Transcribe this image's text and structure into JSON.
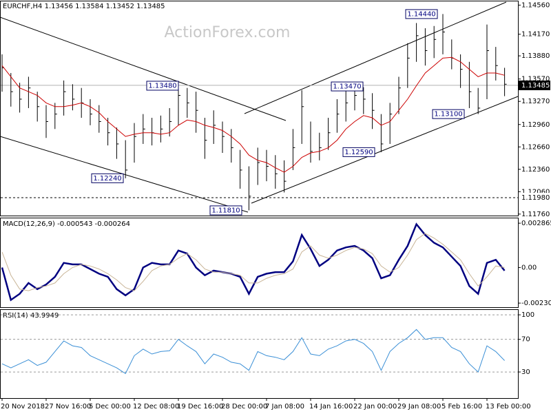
{
  "chart_data": [
    {
      "type": "hilo",
      "title": "EURCHF,H4  1.13456 1.13584 1.13452 1.13485",
      "watermark": "ActionForex.com",
      "categories": [
        "20 Nov 2018",
        null,
        null,
        null,
        null,
        "27 Nov 16:00",
        null,
        null,
        null,
        null,
        "5 Dec 00:00",
        null,
        null,
        null,
        null,
        "12 Dec 08:00",
        null,
        null,
        null,
        null,
        "19 Dec 16:00",
        null,
        null,
        null,
        null,
        "28 Dec 00:00",
        null,
        null,
        null,
        null,
        "7 Jan 08:00",
        null,
        null,
        null,
        null,
        "14 Jan 16:00",
        null,
        null,
        null,
        null,
        "22 Jan 00:00",
        null,
        null,
        null,
        null,
        "29 Jan 08:00",
        null,
        null,
        null,
        null,
        "5 Feb 16:00",
        null,
        null,
        null,
        null,
        "13 Feb 00:00",
        null,
        null
      ],
      "series": [
        {
          "color": "#000000",
          "values": [
            1.1372,
            1.134,
            1.133,
            1.1345,
            1.132,
            1.13,
            1.131,
            1.134,
            1.133,
            1.1325,
            1.131,
            1.13,
            1.1285,
            1.127,
            1.1235,
            1.128,
            1.129,
            1.1285,
            1.129,
            1.13,
            1.1335,
            1.1325,
            1.1315,
            1.1275,
            1.1295,
            1.128,
            1.1265,
            1.1235,
            1.12,
            1.1245,
            1.124,
            1.123,
            1.122,
            1.1265,
            1.132,
            1.126,
            1.1265,
            1.1285,
            1.131,
            1.1325,
            1.1335,
            1.133,
            1.1315,
            1.127,
            1.131,
            1.1345,
            1.1385,
            1.1415,
            1.1395,
            1.141,
            1.142,
            1.1385,
            1.137,
            1.134,
            1.1318,
            1.1395,
            1.1375,
            1.135
          ],
          "high": [
            1.139,
            1.1365,
            1.1352,
            1.136,
            1.134,
            1.1322,
            1.1325,
            1.1355,
            1.135,
            1.1345,
            1.133,
            1.1322,
            1.1305,
            1.1292,
            1.1275,
            1.1298,
            1.131,
            1.1305,
            1.1308,
            1.1318,
            1.1348,
            1.1345,
            1.134,
            1.1305,
            1.1315,
            1.13,
            1.129,
            1.1262,
            1.124,
            1.1265,
            1.1262,
            1.1255,
            1.1248,
            1.129,
            1.1342,
            1.13,
            1.1285,
            1.1305,
            1.133,
            1.1347,
            1.1345,
            1.1346,
            1.1338,
            1.131,
            1.1325,
            1.136,
            1.1405,
            1.1432,
            1.1425,
            1.1428,
            1.1444,
            1.141,
            1.139,
            1.138,
            1.1345,
            1.143,
            1.14,
            1.1372
          ],
          "low": [
            1.134,
            1.132,
            1.1312,
            1.1318,
            1.13,
            1.1278,
            1.129,
            1.1308,
            1.1315,
            1.1305,
            1.1295,
            1.1285,
            1.1268,
            1.125,
            1.1224,
            1.1245,
            1.127,
            1.1268,
            1.1272,
            1.128,
            1.1295,
            1.1305,
            1.1285,
            1.125,
            1.127,
            1.1258,
            1.1245,
            1.121,
            1.1181,
            1.1215,
            1.122,
            1.121,
            1.1205,
            1.1235,
            1.127,
            1.1245,
            1.1248,
            1.1262,
            1.1285,
            1.13,
            1.1315,
            1.131,
            1.129,
            1.1259,
            1.127,
            1.131,
            1.1345,
            1.138,
            1.1375,
            1.1385,
            1.139,
            1.137,
            1.1345,
            1.1318,
            1.131,
            1.133,
            1.1355,
            1.1334
          ]
        },
        {
          "color": "#cc0000",
          "values": [
            1.1375,
            1.136,
            1.1345,
            1.134,
            1.1335,
            1.1325,
            1.132,
            1.132,
            1.1322,
            1.1325,
            1.132,
            1.1312,
            1.13,
            1.129,
            1.128,
            1.1283,
            1.1285,
            1.1285,
            1.1283,
            1.1285,
            1.1295,
            1.1302,
            1.13,
            1.1295,
            1.1292,
            1.1288,
            1.128,
            1.127,
            1.1255,
            1.1248,
            1.1245,
            1.1238,
            1.1232,
            1.124,
            1.1252,
            1.1258,
            1.126,
            1.1265,
            1.1275,
            1.129,
            1.13,
            1.1308,
            1.1305,
            1.1295,
            1.13,
            1.1315,
            1.133,
            1.1348,
            1.1365,
            1.1375,
            1.1385,
            1.1386,
            1.138,
            1.137,
            1.136,
            1.1365,
            1.1365,
            1.1362
          ]
        }
      ],
      "ylim": [
        1.1174,
        1.1461
      ],
      "yticks": [
        {
          "value": 1.1456,
          "label": "1.14560"
        },
        {
          "value": 1.1417,
          "label": "1.14170"
        },
        {
          "value": 1.1388,
          "label": "1.13880"
        },
        {
          "value": 1.1357,
          "label": "1.13570"
        },
        {
          "value": 1.1327,
          "label": "1.13270"
        },
        {
          "value": 1.1296,
          "label": "1.12960"
        },
        {
          "value": 1.1266,
          "label": "1.12660"
        },
        {
          "value": 1.1236,
          "label": "1.12360"
        },
        {
          "value": 1.1206,
          "label": "1.12060"
        },
        {
          "value": 1.1176,
          "label": "1.11760"
        }
      ],
      "annotations": [
        {
          "value": 1.1444,
          "label": "1.14440"
        },
        {
          "value": 1.1348,
          "label": "1.13480"
        },
        {
          "value": 1.1347,
          "label": "1.13470"
        },
        {
          "value": 1.131,
          "label": "1.13100"
        },
        {
          "value": 1.1259,
          "label": "1.12590"
        },
        {
          "value": 1.1224,
          "label": "1.12240"
        },
        {
          "value": 1.1181,
          "label": "1.11810"
        }
      ],
      "last_price": 1.13485,
      "level": {
        "value": 1.1198,
        "label": "1.11980"
      }
    },
    {
      "type": "line",
      "title": "MACD(12,26,9) -0.000543 -0.000264",
      "series": [
        {
          "color": "#000080",
          "width": 2.5,
          "values": [
            0.0,
            -0.0021,
            -0.0017,
            -0.001,
            -0.0014,
            -0.0011,
            -0.0006,
            0.0003,
            0.0002,
            0.0002,
            -0.0001,
            -0.0004,
            -0.0006,
            -0.0014,
            -0.0018,
            -0.0014,
            0.0,
            0.0003,
            0.0002,
            0.0002,
            0.0011,
            0.0009,
            0.0,
            -0.0005,
            -0.0002,
            -0.0003,
            -0.0004,
            -0.0006,
            -0.0017,
            -0.0006,
            -0.0004,
            -0.0003,
            -0.0003,
            0.0004,
            0.0021,
            0.0012,
            0.0001,
            0.0005,
            0.0011,
            0.0013,
            0.0014,
            0.0011,
            0.0006,
            -0.0007,
            -0.0005,
            0.0005,
            0.0014,
            0.0028,
            0.0021,
            0.0016,
            0.0013,
            0.0007,
            0.0001,
            -0.0012,
            -0.0017,
            0.0003,
            0.0005,
            -0.0002
          ]
        },
        {
          "color": "#c8b496",
          "width": 1,
          "values": [
            0.001,
            -0.0005,
            -0.0014,
            -0.0015,
            -0.0013,
            -0.0012,
            -0.001,
            -0.0004,
            0.0,
            0.0002,
            0.0001,
            -0.0001,
            -0.0004,
            -0.0008,
            -0.0013,
            -0.0015,
            -0.0009,
            -0.0002,
            0.0001,
            0.0002,
            0.0006,
            0.0009,
            0.0005,
            -0.0001,
            -0.0003,
            -0.0003,
            -0.0004,
            -0.0005,
            -0.001,
            -0.001,
            -0.0007,
            -0.0005,
            -0.0004,
            -0.0001,
            0.001,
            0.0014,
            0.0008,
            0.0006,
            0.0008,
            0.0011,
            0.0013,
            0.0012,
            0.0009,
            0.0001,
            -0.0003,
            0.0,
            0.0008,
            0.0018,
            0.0022,
            0.0019,
            0.0015,
            0.001,
            0.0005,
            -0.0004,
            -0.0012,
            -0.0006,
            0.0001,
            0.0
          ]
        }
      ],
      "ylim": [
        -0.00261,
        0.00318
      ],
      "yticks": [
        0.002865,
        {
          "value": 0,
          "label": "0.00"
        },
        -0.002302
      ]
    },
    {
      "type": "line",
      "title": "RSI(14) 43.9949",
      "series": [
        {
          "color": "#3a8fd6",
          "width": 1,
          "values": [
            40,
            35,
            40,
            45,
            38,
            42,
            55,
            68,
            62,
            60,
            50,
            45,
            40,
            35,
            28,
            50,
            58,
            52,
            55,
            56,
            70,
            62,
            55,
            40,
            52,
            48,
            42,
            40,
            32,
            55,
            50,
            48,
            45,
            55,
            72,
            52,
            50,
            58,
            62,
            68,
            70,
            65,
            55,
            32,
            55,
            65,
            72,
            82,
            70,
            72,
            72,
            60,
            55,
            40,
            30,
            62,
            55,
            44
          ]
        }
      ],
      "ylim": [
        -2,
        106
      ],
      "yticks": [
        100,
        70,
        30
      ],
      "grid": true
    }
  ]
}
